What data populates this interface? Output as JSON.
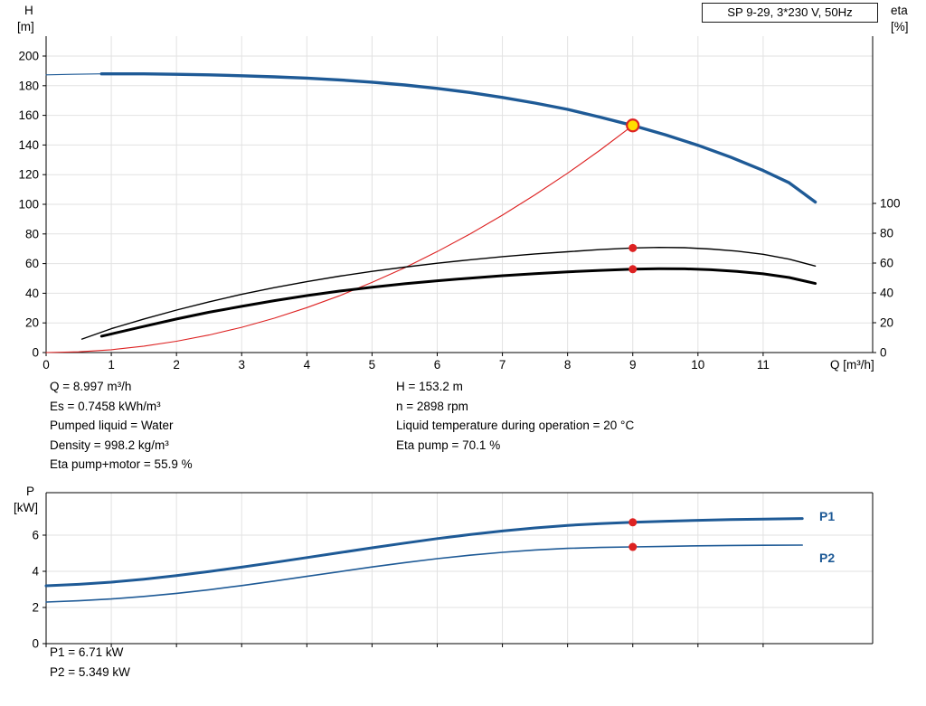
{
  "title_box": "SP 9-29, 3*230 V, 50Hz",
  "axis_corner_labels": {
    "h": "H",
    "h_unit": "[m]",
    "eta": "eta",
    "eta_unit": "[%]",
    "p": "P",
    "p_unit": "[kW]"
  },
  "info": {
    "left": [
      "Q = 8.997 m³/h",
      "Es = 0.7458 kWh/m³",
      "Pumped liquid = Water",
      "Density = 998.2 kg/m³",
      "Eta pump+motor = 55.9 %"
    ],
    "right": [
      "H = 153.2 m",
      "n = 2898 rpm",
      "Liquid temperature during operation = 20 °C",
      "Eta pump = 70.1 %"
    ]
  },
  "power_readout": [
    "P1 = 6.71 kW",
    "P2 = 5.349 kW"
  ],
  "series_labels": {
    "p1": "P1",
    "p2": "P2"
  },
  "colors": {
    "blue": "#1e5a96",
    "red": "#dd2222",
    "black": "#000000",
    "grid": "#e2e2e2",
    "axis": "#000000",
    "marker_red": "#dd2222",
    "duty_fill": "#ffdd00"
  },
  "chart_data": [
    {
      "type": "line",
      "title": "SP 9-29, 3*230 V, 50Hz",
      "primary_y": "H",
      "x_axis": {
        "label": "Q [m³/h]",
        "min": 0,
        "max": 12.68,
        "ticks": [
          0,
          1,
          2,
          3,
          4,
          5,
          6,
          7,
          8,
          9,
          10,
          11
        ],
        "show_labels": true
      },
      "y_axes": {
        "H": {
          "label": "H [m]",
          "min": 0,
          "max": 200,
          "ticks": [
            0,
            20,
            40,
            60,
            80,
            100,
            120,
            140,
            160,
            180,
            200
          ],
          "side": "left"
        },
        "eta": {
          "label": "eta [%]",
          "min": 0,
          "max": 100,
          "ticks": [
            0,
            20,
            40,
            60,
            80,
            100
          ],
          "side": "right"
        }
      },
      "series": [
        {
          "name": "head-curve-lead",
          "axis": "H",
          "color_key": "blue",
          "width": 1.2,
          "points": [
            [
              0,
              187.3
            ],
            [
              0.4,
              187.7
            ],
            [
              0.85,
              188
            ]
          ]
        },
        {
          "name": "head-curve",
          "axis": "H",
          "color_key": "blue",
          "width": 3.4,
          "points": [
            [
              0.85,
              188
            ],
            [
              1.5,
              188
            ],
            [
              2,
              187.7
            ],
            [
              2.5,
              187.3
            ],
            [
              3,
              186.7
            ],
            [
              3.5,
              186
            ],
            [
              4,
              185.1
            ],
            [
              4.5,
              183.9
            ],
            [
              5,
              182.4
            ],
            [
              5.5,
              180.5
            ],
            [
              6,
              178.2
            ],
            [
              6.5,
              175.4
            ],
            [
              7,
              172.1
            ],
            [
              7.5,
              168.3
            ],
            [
              8,
              164
            ],
            [
              8.5,
              158.8
            ],
            [
              9,
              153.2
            ],
            [
              9.5,
              146.9
            ],
            [
              10,
              139.8
            ],
            [
              10.5,
              131.8
            ],
            [
              11,
              122.8
            ],
            [
              11.4,
              114.5
            ],
            [
              11.8,
              101.5
            ]
          ]
        },
        {
          "name": "system-curve",
          "axis": "H",
          "color_key": "red",
          "width": 1.1,
          "points": [
            [
              0,
              0
            ],
            [
              0.5,
              0.5
            ],
            [
              1,
              1.9
            ],
            [
              1.5,
              4.3
            ],
            [
              2,
              7.6
            ],
            [
              2.5,
              11.8
            ],
            [
              3,
              17
            ],
            [
              3.5,
              23.2
            ],
            [
              4,
              30.3
            ],
            [
              4.5,
              38.3
            ],
            [
              5,
              47.3
            ],
            [
              5.5,
              57.2
            ],
            [
              6,
              68.1
            ],
            [
              6.5,
              79.9
            ],
            [
              7,
              92.7
            ],
            [
              7.5,
              106.4
            ],
            [
              8,
              121
            ],
            [
              8.5,
              136.6
            ],
            [
              9,
              153.2
            ]
          ]
        },
        {
          "name": "eta-pump-curve",
          "axis": "eta",
          "color_key": "black",
          "width": 1.4,
          "points": [
            [
              0.55,
              9
            ],
            [
              1,
              16
            ],
            [
              1.5,
              22.5
            ],
            [
              2,
              28.5
            ],
            [
              2.5,
              34
            ],
            [
              3,
              39
            ],
            [
              3.5,
              43.5
            ],
            [
              4,
              47.5
            ],
            [
              4.5,
              51.2
            ],
            [
              5,
              54.4
            ],
            [
              5.5,
              57.3
            ],
            [
              6,
              59.9
            ],
            [
              6.5,
              62.2
            ],
            [
              7,
              64.3
            ],
            [
              7.5,
              66.1
            ],
            [
              8,
              67.6
            ],
            [
              8.5,
              69
            ],
            [
              9,
              70.1
            ],
            [
              9.4,
              70.5
            ],
            [
              9.8,
              70.3
            ],
            [
              10.2,
              69.4
            ],
            [
              10.6,
              68
            ],
            [
              11,
              65.9
            ],
            [
              11.4,
              62.6
            ],
            [
              11.8,
              58
            ]
          ]
        },
        {
          "name": "eta-pump-motor-curve",
          "axis": "eta",
          "color_key": "black",
          "width": 3.0,
          "points": [
            [
              0.85,
              11
            ],
            [
              1,
              12.5
            ],
            [
              1.5,
              17.5
            ],
            [
              2,
              22.5
            ],
            [
              2.5,
              27
            ],
            [
              3,
              31
            ],
            [
              3.5,
              34.8
            ],
            [
              4,
              38.2
            ],
            [
              4.5,
              41.2
            ],
            [
              5,
              43.8
            ],
            [
              5.5,
              46.1
            ],
            [
              6,
              48.1
            ],
            [
              6.5,
              49.9
            ],
            [
              7,
              51.5
            ],
            [
              7.5,
              52.9
            ],
            [
              8,
              54.1
            ],
            [
              8.5,
              55.1
            ],
            [
              9,
              55.9
            ],
            [
              9.4,
              56.2
            ],
            [
              9.8,
              56.1
            ],
            [
              10.2,
              55.5
            ],
            [
              10.6,
              54.4
            ],
            [
              11,
              52.8
            ],
            [
              11.4,
              50.3
            ],
            [
              11.8,
              46.3
            ]
          ]
        }
      ],
      "markers": [
        {
          "name": "duty-point",
          "axis": "H",
          "x": 9,
          "y": 153.2,
          "style": "duty"
        },
        {
          "name": "eta-pump-dot",
          "axis": "eta",
          "x": 9,
          "y": 70.1,
          "style": "dot"
        },
        {
          "name": "eta-pump-motor-dot",
          "axis": "eta",
          "x": 9,
          "y": 55.9,
          "style": "dot"
        }
      ]
    },
    {
      "type": "line",
      "title": "Power curves",
      "primary_y": "P",
      "frame_top": true,
      "x_axis": {
        "label": "Q [m³/h]",
        "min": 0,
        "max": 12.68,
        "ticks": [
          0,
          1,
          2,
          3,
          4,
          5,
          6,
          7,
          8,
          9,
          10,
          11
        ],
        "show_labels": false
      },
      "y_axes": {
        "P": {
          "label": "P [kW]",
          "min": 0,
          "max": 8.35,
          "ticks": [
            0,
            2,
            4,
            6
          ],
          "side": "left"
        }
      },
      "series": [
        {
          "name": "p1-curve",
          "axis": "P",
          "color_key": "blue",
          "width": 3.0,
          "points": [
            [
              0,
              3.2
            ],
            [
              0.5,
              3.28
            ],
            [
              1,
              3.4
            ],
            [
              1.5,
              3.56
            ],
            [
              2,
              3.76
            ],
            [
              2.5,
              3.99
            ],
            [
              3,
              4.23
            ],
            [
              3.5,
              4.49
            ],
            [
              4,
              4.76
            ],
            [
              4.5,
              5.03
            ],
            [
              5,
              5.3
            ],
            [
              5.5,
              5.56
            ],
            [
              6,
              5.81
            ],
            [
              6.5,
              6.03
            ],
            [
              7,
              6.23
            ],
            [
              7.5,
              6.4
            ],
            [
              8,
              6.54
            ],
            [
              8.5,
              6.64
            ],
            [
              9,
              6.71
            ],
            [
              9.5,
              6.77
            ],
            [
              10,
              6.82
            ],
            [
              10.5,
              6.86
            ],
            [
              11,
              6.89
            ],
            [
              11.6,
              6.92
            ]
          ]
        },
        {
          "name": "p2-curve",
          "axis": "P",
          "color_key": "blue",
          "width": 1.6,
          "points": [
            [
              0,
              2.3
            ],
            [
              0.5,
              2.37
            ],
            [
              1,
              2.47
            ],
            [
              1.5,
              2.61
            ],
            [
              2,
              2.78
            ],
            [
              2.5,
              2.98
            ],
            [
              3,
              3.21
            ],
            [
              3.5,
              3.46
            ],
            [
              4,
              3.72
            ],
            [
              4.5,
              3.98
            ],
            [
              5,
              4.24
            ],
            [
              5.5,
              4.48
            ],
            [
              6,
              4.7
            ],
            [
              6.5,
              4.89
            ],
            [
              7,
              5.05
            ],
            [
              7.5,
              5.18
            ],
            [
              8,
              5.27
            ],
            [
              8.5,
              5.32
            ],
            [
              9,
              5.349
            ],
            [
              9.5,
              5.38
            ],
            [
              10,
              5.41
            ],
            [
              10.5,
              5.43
            ],
            [
              11,
              5.44
            ],
            [
              11.6,
              5.45
            ]
          ]
        }
      ],
      "markers": [
        {
          "name": "p1-dot",
          "axis": "P",
          "x": 9,
          "y": 6.71,
          "style": "dot"
        },
        {
          "name": "p2-dot",
          "axis": "P",
          "x": 9,
          "y": 5.349,
          "style": "dot"
        }
      ]
    }
  ]
}
